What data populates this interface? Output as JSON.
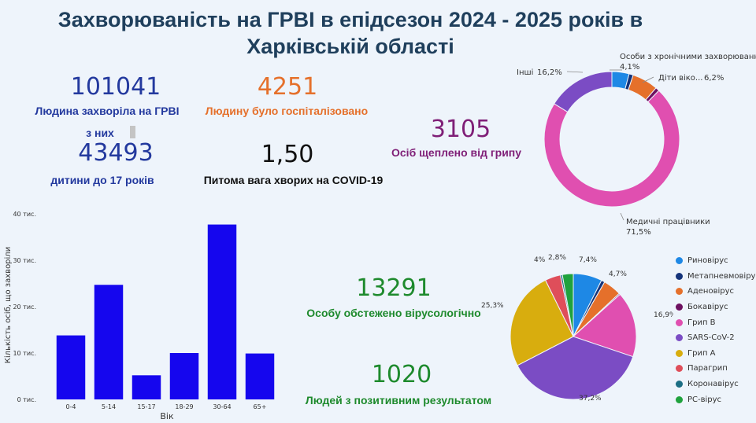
{
  "title_line1": "Захворюваність на ГРВІ в епідсезон 2024 - 2025 років в",
  "title_line2": "Харківській області",
  "stats": {
    "sick_total": "101041",
    "sick_total_label": "Людина захворіла на ГРВІ",
    "of_them": "з них",
    "children": "43493",
    "children_label": "дитини до 17 років",
    "hospitalized": "4251",
    "hospitalized_label": "Людину було госпіталізовано",
    "covid_share": "1,50",
    "covid_share_label": "Питома вага хворих на COVID-19",
    "vaccinated": "3105",
    "vaccinated_label": "Осіб щеплено від грипу",
    "tested": "13291",
    "tested_label": "Особу обстежено вірусологічно",
    "positive": "1020",
    "positive_label": "Людей з позитивним результатом"
  },
  "colors": {
    "bar": "#1506ee",
    "blue": "#23399e",
    "orange": "#e5702b",
    "purple": "#7f1f77",
    "green": "#1e8a2d"
  },
  "chart_data": [
    {
      "type": "bar",
      "title": "",
      "xlabel": "Вік",
      "ylabel": "Кількість осіб, що захворіли",
      "categories": [
        "0-4",
        "5-14",
        "15-17",
        "18-29",
        "30-64",
        "65+"
      ],
      "values": [
        13800,
        24700,
        5200,
        10000,
        37700,
        9900
      ],
      "ylim": [
        0,
        40000
      ],
      "yticks": [
        {
          "value": 0,
          "label": "0 тис."
        },
        {
          "value": 10000,
          "label": "10 тис."
        },
        {
          "value": 20000,
          "label": "20 тис."
        },
        {
          "value": 30000,
          "label": "30 тис."
        },
        {
          "value": 40000,
          "label": "40 тис."
        }
      ],
      "grid": false
    },
    {
      "type": "pie",
      "variant": "donut",
      "title": "",
      "slices": [
        {
          "name": "Особи з хронічними захворюванн...",
          "value": 4.1,
          "label": "4,1%",
          "color": "#1e88e5"
        },
        {
          "name": "",
          "value": 1.0,
          "label": "",
          "color": "#14337a"
        },
        {
          "name": "Діти віко...",
          "value": 6.2,
          "label": "6,2%",
          "color": "#e5702b"
        },
        {
          "name": "",
          "value": 0.9,
          "label": "",
          "color": "#6d1060"
        },
        {
          "name": "Медичні працівники",
          "value": 71.5,
          "label": "71,5%",
          "color": "#e04fb0"
        },
        {
          "name": "Інші",
          "value": 16.2,
          "label": "16,2%",
          "color": "#7b4cc4"
        }
      ]
    },
    {
      "type": "pie",
      "title": "",
      "legend_position": "right",
      "slices": [
        {
          "name": "Риновірус",
          "value": 7.4,
          "label": "7,4%",
          "color": "#1e88e5"
        },
        {
          "name": "Метапневмовірус",
          "value": 0.9,
          "label": "",
          "color": "#14337a"
        },
        {
          "name": "Аденовірус",
          "value": 4.7,
          "label": "4,7%",
          "color": "#e5702b"
        },
        {
          "name": "Бокавірус",
          "value": 0.3,
          "label": "",
          "color": "#6d1060"
        },
        {
          "name": "Грип В",
          "value": 16.9,
          "label": "16,9%",
          "color": "#e04fb0"
        },
        {
          "name": "SARS-CoV-2",
          "value": 37.2,
          "label": "37,2%",
          "color": "#7b4cc4"
        },
        {
          "name": "Грип А",
          "value": 25.3,
          "label": "25,3%",
          "color": "#d8ad0e"
        },
        {
          "name": "Парагрип",
          "value": 4.0,
          "label": "4%",
          "color": "#df4e5a"
        },
        {
          "name": "Коронавірус",
          "value": 0.5,
          "label": "",
          "color": "#1c6e84"
        },
        {
          "name": "РС-вірус",
          "value": 2.8,
          "label": "2,8%",
          "color": "#1fa23d"
        }
      ]
    }
  ]
}
